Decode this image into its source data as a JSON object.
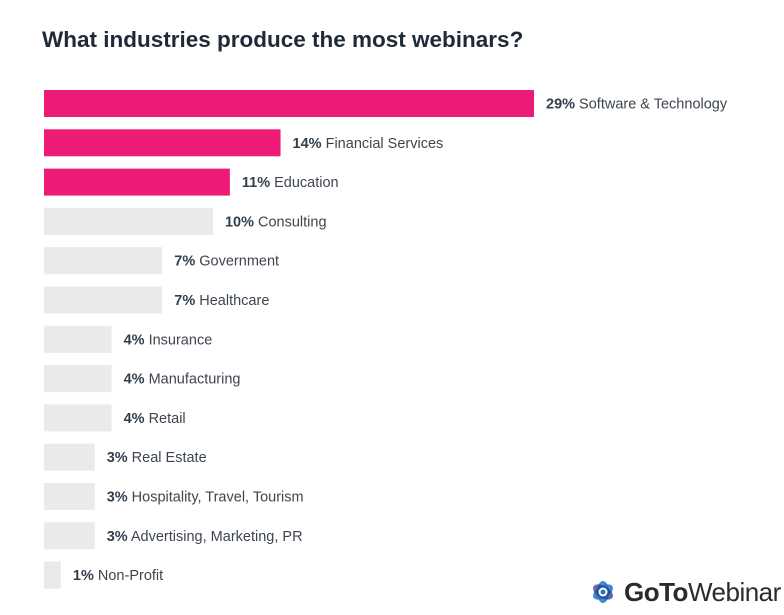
{
  "chart_data": {
    "type": "bar",
    "orientation": "horizontal",
    "title": "What industries produce the most webinars?",
    "categories": [
      "Software & Technology",
      "Financial Services",
      "Education",
      "Consulting",
      "Government",
      "Healthcare",
      "Insurance",
      "Manufacturing",
      "Retail",
      "Real Estate",
      "Hospitality, Travel, Tourism",
      "Advertising, Marketing, PR",
      "Non-Profit"
    ],
    "values": [
      29,
      14,
      11,
      10,
      7,
      7,
      4,
      4,
      4,
      3,
      3,
      3,
      1
    ],
    "value_labels": [
      "29%",
      "14%",
      "11%",
      "10%",
      "7%",
      "7%",
      "4%",
      "4%",
      "4%",
      "3%",
      "3%",
      "3%",
      "1%"
    ],
    "highlight_count": 3,
    "colors": {
      "highlight": "#ed1b76",
      "default": "#e9eaec",
      "label_value": "#333f4c",
      "label_text": "#3d4650"
    }
  },
  "logo": {
    "brand_strong": "GoTo",
    "brand_light": "Webinar",
    "icon": "gotowebinar-flower-icon",
    "colors": [
      "#1f76c4",
      "#2a3f8f"
    ]
  }
}
